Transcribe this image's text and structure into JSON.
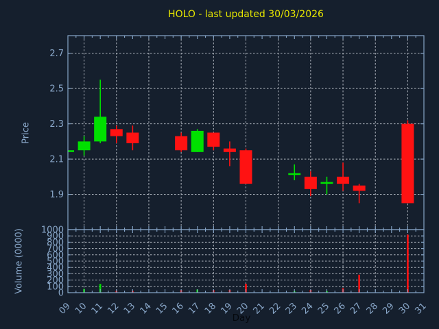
{
  "title": "HOLO - last updated 30/03/2026",
  "chart_data": {
    "type": "candlestick",
    "title": "HOLO - last updated 30/03/2026",
    "xlabel": "Day",
    "legend": "none",
    "grid": "dashed",
    "price_axis": {
      "label": "Price",
      "range": [
        1.7,
        2.8
      ],
      "ticks": [
        1.9,
        2.1,
        2.3,
        2.5,
        2.7
      ]
    },
    "volume_axis": {
      "label": "Volume (0000)",
      "range": [
        0,
        1000
      ],
      "ticks": [
        0,
        100,
        200,
        300,
        400,
        500,
        600,
        700,
        800,
        900,
        1000
      ]
    },
    "x_axis": {
      "range": [
        9,
        31
      ],
      "tick_labels": [
        "09",
        "10",
        "11",
        "12",
        "13",
        "14",
        "15",
        "16",
        "17",
        "18",
        "19",
        "20",
        "21",
        "22",
        "23",
        "24",
        "25",
        "26",
        "27",
        "28",
        "29",
        "30",
        "31"
      ],
      "grid_days": [
        10,
        12,
        14,
        16,
        18,
        20,
        22,
        24,
        26,
        28,
        30
      ]
    },
    "colors": {
      "background": "#151f2d",
      "axis": "#87a6c9",
      "tick_text": "#8aa8ca",
      "grid": "#ccd1d9",
      "title": "#e6e600",
      "up": "#00e000",
      "down": "#ff1212",
      "xlabel_text": "#05080d"
    },
    "series": [
      {
        "day": 9,
        "open": 2.14,
        "high": 2.15,
        "low": 2.14,
        "close": 2.15,
        "volume": 8
      },
      {
        "day": 10,
        "open": 2.15,
        "high": 2.23,
        "low": 2.12,
        "close": 2.2,
        "volume": 60
      },
      {
        "day": 11,
        "open": 2.2,
        "high": 2.55,
        "low": 2.19,
        "close": 2.34,
        "volume": 140
      },
      {
        "day": 12,
        "open": 2.27,
        "high": 2.29,
        "low": 2.19,
        "close": 2.23,
        "volume": 30
      },
      {
        "day": 13,
        "open": 2.25,
        "high": 2.29,
        "low": 2.15,
        "close": 2.19,
        "volume": 30
      },
      {
        "day": 16,
        "open": 2.23,
        "high": 2.25,
        "low": 2.14,
        "close": 2.15,
        "volume": 40
      },
      {
        "day": 17,
        "open": 2.14,
        "high": 2.27,
        "low": 2.14,
        "close": 2.26,
        "volume": 50
      },
      {
        "day": 18,
        "open": 2.25,
        "high": 2.25,
        "low": 2.15,
        "close": 2.17,
        "volume": 40
      },
      {
        "day": 19,
        "open": 2.16,
        "high": 2.2,
        "low": 2.06,
        "close": 2.14,
        "volume": 45
      },
      {
        "day": 20,
        "open": 2.15,
        "high": 2.16,
        "low": 1.96,
        "close": 1.96,
        "volume": 140
      },
      {
        "day": 23,
        "open": 2.01,
        "high": 2.07,
        "low": 1.98,
        "close": 2.02,
        "volume": 25
      },
      {
        "day": 24,
        "open": 2.0,
        "high": 2.03,
        "low": 1.89,
        "close": 1.93,
        "volume": 45
      },
      {
        "day": 25,
        "open": 1.96,
        "high": 2.0,
        "low": 1.9,
        "close": 1.97,
        "volume": 25
      },
      {
        "day": 26,
        "open": 2.0,
        "high": 2.08,
        "low": 1.92,
        "close": 1.96,
        "volume": 70
      },
      {
        "day": 27,
        "open": 1.95,
        "high": 1.96,
        "low": 1.85,
        "close": 1.92,
        "volume": 285
      },
      {
        "day": 30,
        "open": 2.3,
        "high": 2.32,
        "low": 1.85,
        "close": 1.85,
        "volume": 920
      }
    ]
  }
}
